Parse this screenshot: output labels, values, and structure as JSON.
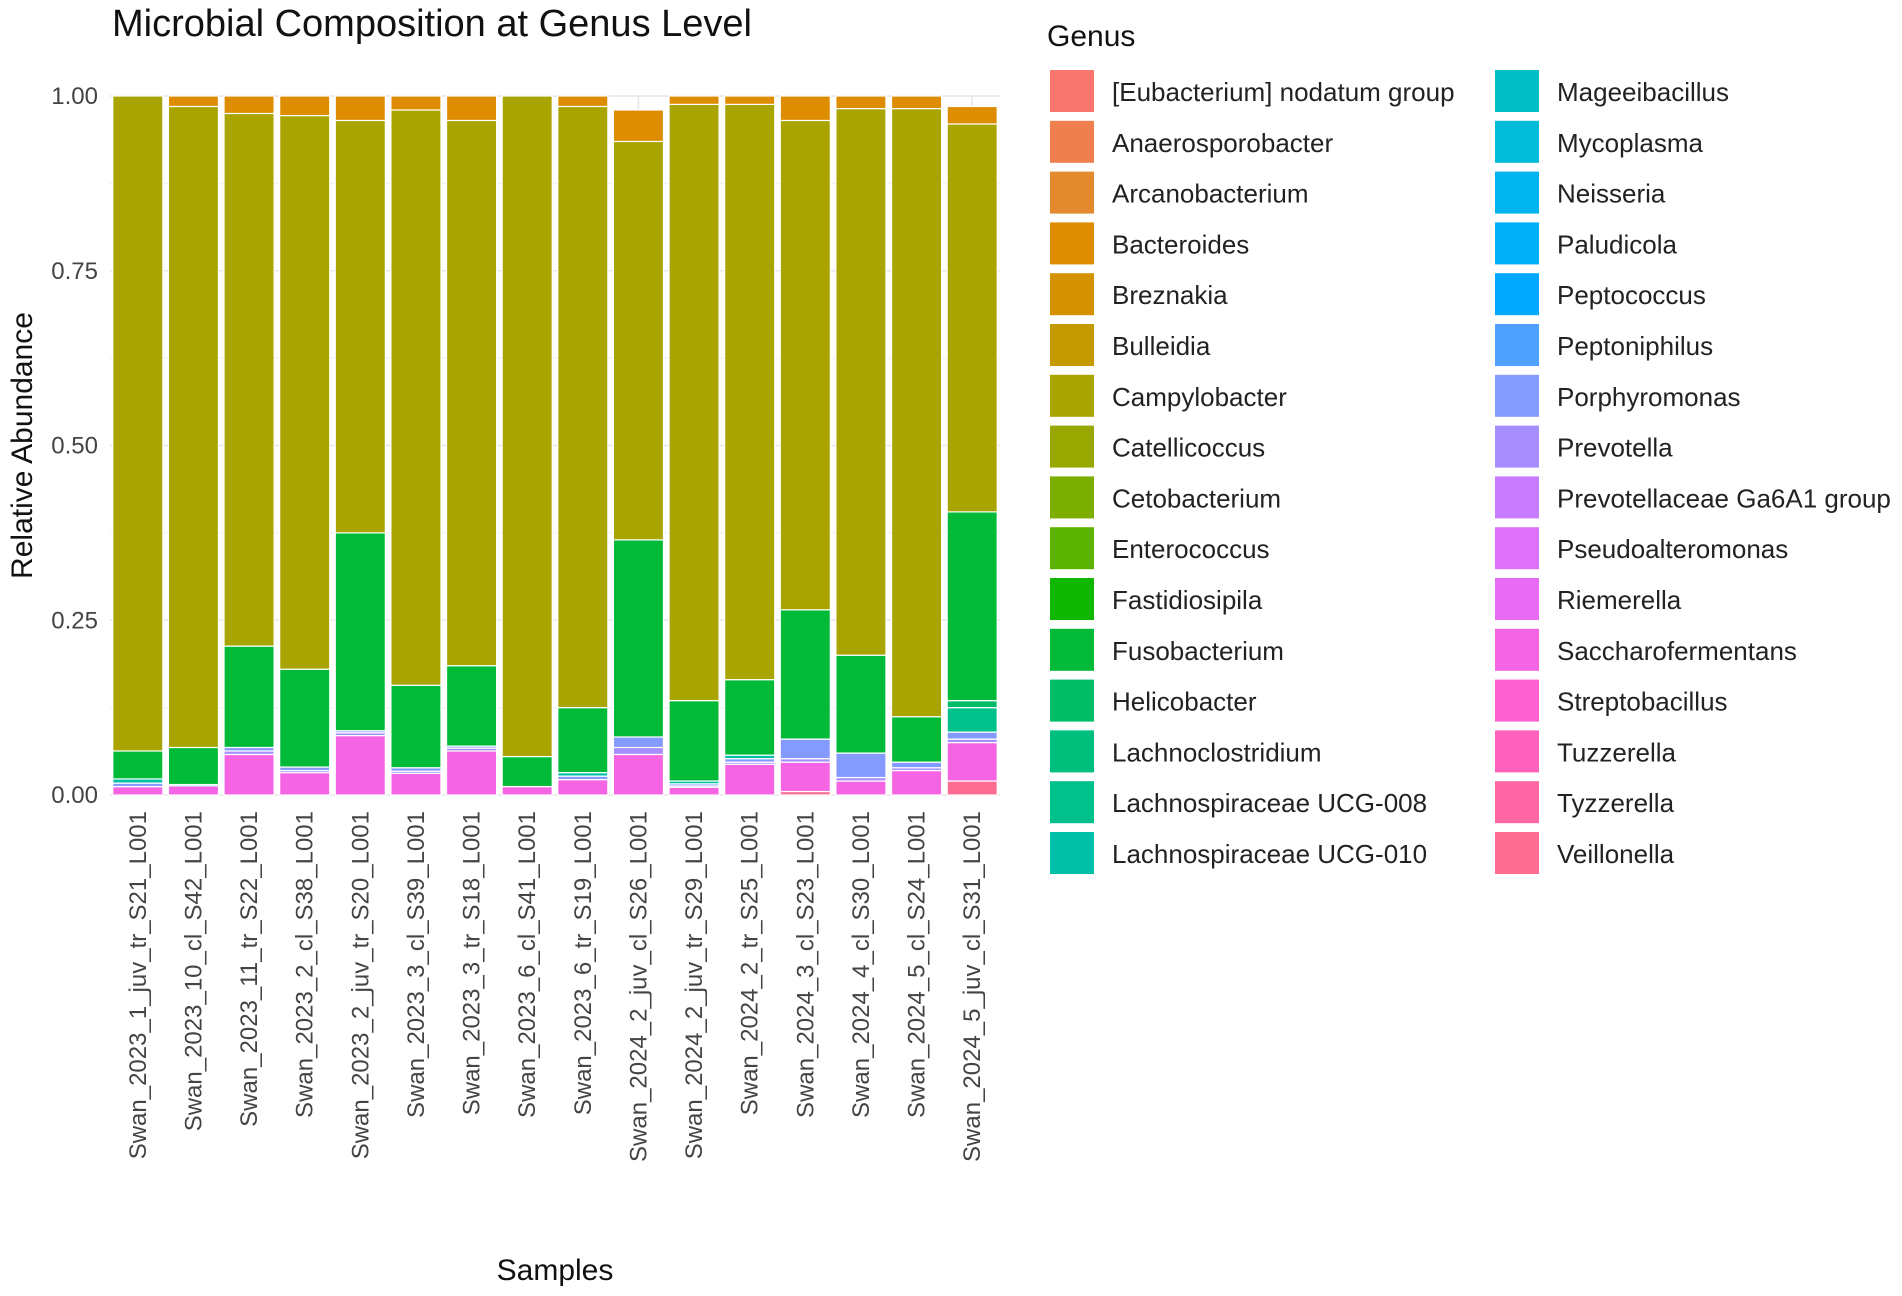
{
  "chart_data": {
    "type": "bar",
    "stacked": true,
    "title": "Microbial Composition at Genus Level",
    "xlabel": "Samples",
    "ylabel": "Relative Abundance",
    "ylim": [
      0,
      1
    ],
    "yticks": [
      0,
      0.25,
      0.5,
      0.75,
      1
    ],
    "ytick_labels": [
      "0.00",
      "0.25",
      "0.50",
      "0.75",
      "1.00"
    ],
    "grid": true,
    "legend_title": "Genus",
    "legend_position": "right",
    "categories": [
      "Swan_2023_1_juv_tr_S21_L001",
      "Swan_2023_10_cl_S42_L001",
      "Swan_2023_11_tr_S22_L001",
      "Swan_2023_2_cl_S38_L001",
      "Swan_2023_2_juv_tr_S20_L001",
      "Swan_2023_3_cl_S39_L001",
      "Swan_2023_3_tr_S18_L001",
      "Swan_2023_6_cl_S41_L001",
      "Swan_2023_6_tr_S19_L001",
      "Swan_2024_2_juv_cl_S26_L001",
      "Swan_2024_2_juv_tr_S29_L001",
      "Swan_2024_2_tr_S25_L001",
      "Swan_2024_3_cl_S23_L001",
      "Swan_2024_4_cl_S30_L001",
      "Swan_2024_5_cl_S24_L001",
      "Swan_2024_5_juv_cl_S31_L001"
    ],
    "series": [
      {
        "name": "[Eubacterium] nodatum group",
        "color": "#F8766D",
        "values": [
          0,
          0,
          0,
          0,
          0,
          0,
          0,
          0,
          0,
          0,
          0,
          0,
          0,
          0,
          0,
          0
        ]
      },
      {
        "name": "Anaerosporobacter",
        "color": "#F07F4F",
        "values": [
          0,
          0,
          0,
          0,
          0,
          0,
          0,
          0,
          0,
          0,
          0,
          0,
          0,
          0,
          0,
          0
        ]
      },
      {
        "name": "Arcanobacterium",
        "color": "#E48A2E",
        "values": [
          0,
          0,
          0,
          0,
          0,
          0,
          0,
          0,
          0,
          0,
          0,
          0,
          0,
          0,
          0,
          0
        ]
      },
      {
        "name": "Bacteroides",
        "color": "#DE8C00",
        "values": [
          0,
          0.015,
          0.025,
          0.028,
          0.035,
          0.02,
          0.035,
          0,
          0.015,
          0.045,
          0.012,
          0.012,
          0.035,
          0.018,
          0.018,
          0.025
        ]
      },
      {
        "name": "Breznakia",
        "color": "#D49200",
        "values": [
          0,
          0,
          0,
          0,
          0,
          0,
          0,
          0,
          0,
          0,
          0,
          0,
          0,
          0,
          0,
          0
        ]
      },
      {
        "name": "Bulleidia",
        "color": "#C49A00",
        "values": [
          0,
          0,
          0,
          0,
          0,
          0,
          0,
          0,
          0,
          0,
          0,
          0,
          0,
          0,
          0,
          0
        ]
      },
      {
        "name": "Campylobacter",
        "color": "#A9A400",
        "values": [
          0.937,
          0.917,
          0.762,
          0.792,
          0.59,
          0.823,
          0.78,
          0.945,
          0.86,
          0.57,
          0.853,
          0.823,
          0.7,
          0.782,
          0.87,
          0.555
        ]
      },
      {
        "name": "Catellicoccus",
        "color": "#99A800",
        "values": [
          0,
          0,
          0,
          0,
          0,
          0,
          0,
          0,
          0,
          0,
          0,
          0,
          0,
          0,
          0,
          0
        ]
      },
      {
        "name": "Cetobacterium",
        "color": "#7CAE00",
        "values": [
          0,
          0,
          0,
          0,
          0,
          0,
          0,
          0,
          0,
          0,
          0,
          0,
          0,
          0,
          0,
          0
        ]
      },
      {
        "name": "Enterococcus",
        "color": "#5BB300",
        "values": [
          0,
          0,
          0,
          0,
          0,
          0,
          0,
          0,
          0,
          0,
          0,
          0,
          0,
          0,
          0,
          0
        ]
      },
      {
        "name": "Fastidiosipila",
        "color": "#10B700",
        "values": [
          0,
          0,
          0,
          0,
          0,
          0,
          0,
          0,
          0,
          0,
          0,
          0,
          0,
          0,
          0,
          0
        ]
      },
      {
        "name": "Fusobacterium",
        "color": "#00BA38",
        "values": [
          0.04,
          0.053,
          0.145,
          0.14,
          0.283,
          0.118,
          0.115,
          0.043,
          0.093,
          0.282,
          0.115,
          0.108,
          0.185,
          0.14,
          0.065,
          0.27
        ]
      },
      {
        "name": "Helicobacter",
        "color": "#00BE67",
        "values": [
          0,
          0,
          0,
          0,
          0,
          0,
          0,
          0,
          0,
          0,
          0,
          0,
          0,
          0,
          0,
          0.01
        ]
      },
      {
        "name": "Lachnoclostridium",
        "color": "#00BF7D",
        "values": [
          0,
          0,
          0,
          0,
          0,
          0,
          0,
          0,
          0,
          0,
          0,
          0,
          0,
          0,
          0,
          0
        ]
      },
      {
        "name": "Lachnospiraceae UCG-008",
        "color": "#00C08B",
        "values": [
          0,
          0,
          0,
          0,
          0,
          0,
          0,
          0,
          0,
          0,
          0,
          0,
          0,
          0,
          0,
          0.035
        ]
      },
      {
        "name": "Lachnospiraceae UCG-010",
        "color": "#00C1A7",
        "values": [
          0.006,
          0.002,
          0,
          0,
          0,
          0,
          0,
          0,
          0.005,
          0,
          0.004,
          0.005,
          0,
          0,
          0,
          0
        ]
      },
      {
        "name": "Mageeibacillus",
        "color": "#00BFC4",
        "values": [
          0,
          0,
          0,
          0,
          0,
          0,
          0,
          0,
          0,
          0,
          0,
          0,
          0,
          0,
          0,
          0
        ]
      },
      {
        "name": "Mycoplasma",
        "color": "#00BCD8",
        "values": [
          0,
          0,
          0,
          0,
          0,
          0,
          0,
          0,
          0,
          0,
          0,
          0,
          0,
          0,
          0,
          0
        ]
      },
      {
        "name": "Neisseria",
        "color": "#00B4EF",
        "values": [
          0,
          0,
          0,
          0,
          0,
          0,
          0,
          0,
          0,
          0,
          0,
          0,
          0,
          0,
          0,
          0
        ]
      },
      {
        "name": "Paludicola",
        "color": "#00B0F6",
        "values": [
          0,
          0,
          0,
          0,
          0,
          0,
          0,
          0,
          0,
          0,
          0,
          0,
          0,
          0,
          0,
          0
        ]
      },
      {
        "name": "Peptococcus",
        "color": "#00A9FF",
        "values": [
          0,
          0,
          0,
          0,
          0,
          0,
          0,
          0,
          0,
          0,
          0,
          0,
          0,
          0,
          0,
          0
        ]
      },
      {
        "name": "Peptoniphilus",
        "color": "#4EA1FF",
        "values": [
          0,
          0,
          0,
          0,
          0,
          0,
          0,
          0,
          0,
          0,
          0,
          0,
          0,
          0,
          0,
          0
        ]
      },
      {
        "name": "Porphyromonas",
        "color": "#849AFF",
        "values": [
          0.005,
          0,
          0.005,
          0.005,
          0.003,
          0.005,
          0.003,
          0,
          0.005,
          0.015,
          0.003,
          0.005,
          0.028,
          0.035,
          0.008,
          0.01
        ]
      },
      {
        "name": "Prevotella",
        "color": "#A68EFF",
        "values": [
          0,
          0,
          0.005,
          0.003,
          0.004,
          0.003,
          0.004,
          0,
          0,
          0.01,
          0.002,
          0.003,
          0.005,
          0.005,
          0.004,
          0.005
        ]
      },
      {
        "name": "Prevotellaceae Ga6A1 group",
        "color": "#C77CFF",
        "values": [
          0,
          0,
          0,
          0,
          0,
          0,
          0,
          0,
          0,
          0,
          0,
          0,
          0,
          0,
          0,
          0
        ]
      },
      {
        "name": "Pseudoalteromonas",
        "color": "#DD71FA",
        "values": [
          0,
          0,
          0,
          0,
          0,
          0,
          0,
          0,
          0,
          0,
          0,
          0,
          0,
          0,
          0,
          0
        ]
      },
      {
        "name": "Riemerella",
        "color": "#E86BF3",
        "values": [
          0,
          0,
          0,
          0,
          0,
          0,
          0,
          0,
          0,
          0,
          0,
          0,
          0,
          0,
          0,
          0
        ]
      },
      {
        "name": "Saccharofermentans",
        "color": "#F564E3",
        "values": [
          0.012,
          0.013,
          0.058,
          0.032,
          0.085,
          0.031,
          0.063,
          0.012,
          0.022,
          0.058,
          0.011,
          0.044,
          0.042,
          0.02,
          0.035,
          0.055
        ]
      },
      {
        "name": "Streptobacillus",
        "color": "#FD61D1",
        "values": [
          0,
          0,
          0,
          0,
          0,
          0,
          0,
          0,
          0,
          0,
          0,
          0,
          0,
          0,
          0,
          0
        ]
      },
      {
        "name": "Tuzzerella",
        "color": "#FF62BC",
        "values": [
          0,
          0,
          0,
          0,
          0,
          0,
          0,
          0,
          0,
          0,
          0,
          0,
          0,
          0,
          0,
          0
        ]
      },
      {
        "name": "Tyzzerella",
        "color": "#FF67A4",
        "values": [
          0,
          0,
          0,
          0,
          0,
          0,
          0,
          0,
          0,
          0,
          0,
          0,
          0,
          0,
          0,
          0
        ]
      },
      {
        "name": "Veillonella",
        "color": "#FF6C91",
        "values": [
          0,
          0,
          0,
          0,
          0,
          0,
          0,
          0,
          0,
          0,
          0,
          0,
          0.005,
          0,
          0,
          0.02
        ]
      }
    ]
  }
}
